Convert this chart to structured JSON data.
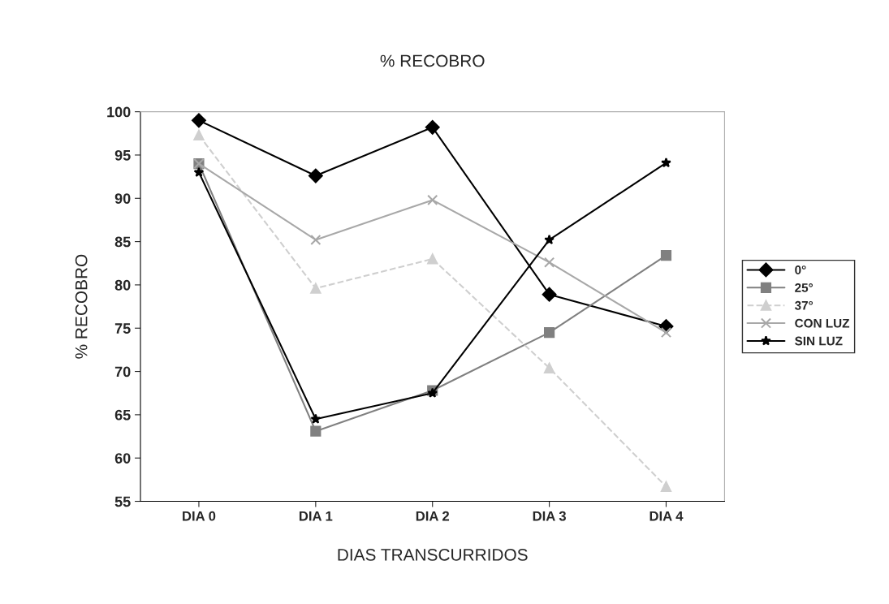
{
  "chart_data": {
    "type": "line",
    "title": "% RECOBRO",
    "xlabel": "DIAS TRANSCURRIDOS",
    "ylabel": "% RECOBRO",
    "categories": [
      "DIA 0",
      "DIA 1",
      "DIA 2",
      "DIA 3",
      "DIA 4"
    ],
    "series": [
      {
        "name": "0°",
        "color": "#000000",
        "marker": "diamond",
        "line_style": "solid",
        "values": [
          99,
          92.6,
          98.2,
          78.9,
          75.2
        ]
      },
      {
        "name": "25°",
        "color": "#808080",
        "marker": "square",
        "line_style": "solid",
        "values": [
          94,
          63.1,
          67.8,
          74.5,
          83.4
        ]
      },
      {
        "name": "37°",
        "color": "#cfcfcf",
        "marker": "triangle",
        "line_style": "dashed",
        "values": [
          97.3,
          79.6,
          83,
          70.4,
          56.7
        ]
      },
      {
        "name": "CON LUZ",
        "color": "#a8a8a8",
        "marker": "cross",
        "line_style": "solid",
        "values": [
          94,
          85.2,
          89.8,
          82.6,
          74.5
        ]
      },
      {
        "name": "SIN LUZ",
        "color": "#000000",
        "marker": "star",
        "line_style": "solid",
        "values": [
          93,
          64.5,
          67.5,
          85.2,
          94.1
        ]
      }
    ],
    "ylim": [
      55,
      100
    ],
    "yticks": [
      55,
      60,
      65,
      70,
      75,
      80,
      85,
      90,
      95,
      100
    ],
    "grid": false,
    "legend": "right"
  }
}
